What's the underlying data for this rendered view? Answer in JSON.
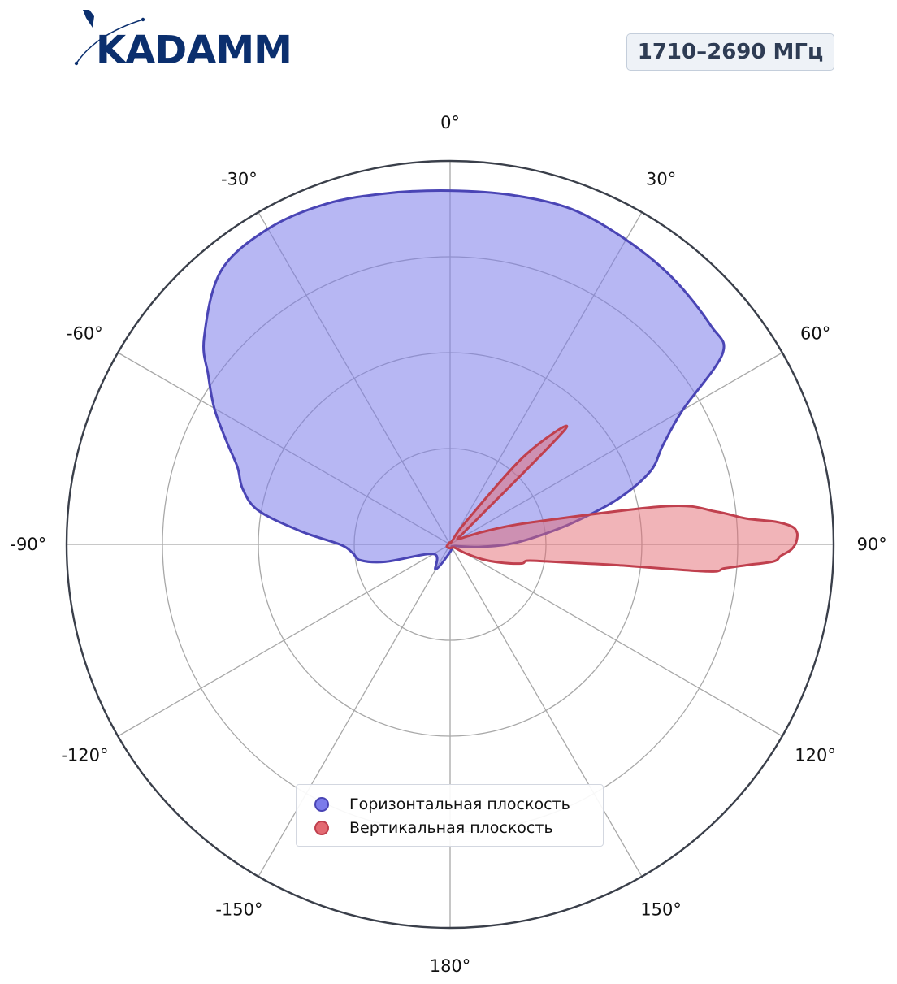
{
  "brand": {
    "logo_text": "KADAMM"
  },
  "badge": {
    "frequency_range": "1710–2690 МГц"
  },
  "chart_data": {
    "type": "polar-area",
    "angle_zero": "top",
    "angle_direction": "clockwise",
    "angle_ticks": [
      0,
      30,
      60,
      90,
      120,
      150,
      180,
      -150,
      -120,
      -90,
      -60,
      -30
    ],
    "angle_tick_labels": [
      "0°",
      "30°",
      "60°",
      "90°",
      "120°",
      "150°",
      "180°",
      "-150°",
      "-120°",
      "-90°",
      "-60°",
      "-30°"
    ],
    "radial_range": [
      0,
      4
    ],
    "radial_gridlines": [
      1,
      2,
      3,
      4
    ],
    "radial_tick_labels_shown": false,
    "grid": true,
    "legend": "bottom-center",
    "series": [
      {
        "name": "Горизонтальная плоскость",
        "color": "#7b7bea",
        "line_color": "#4a45b5",
        "theta": [
          0,
          10,
          20,
          30,
          40,
          50,
          55,
          60,
          65,
          70,
          75,
          80,
          85,
          90,
          95,
          100,
          110,
          120,
          135,
          150,
          180,
          -150,
          -120,
          -105,
          -100,
          -95,
          -90,
          -85,
          -80,
          -75,
          -70,
          -65,
          -60,
          -55,
          -50,
          -40,
          -30,
          -20,
          -10
        ],
        "r": [
          3.69,
          3.7,
          3.72,
          3.67,
          3.62,
          3.55,
          3.47,
          2.8,
          2.45,
          2.22,
          1.8,
          1.3,
          0.9,
          0.6,
          0.3,
          0.12,
          0.05,
          0.04,
          0.03,
          0.03,
          0.08,
          0.3,
          0.2,
          0.7,
          0.95,
          1.02,
          1.15,
          1.56,
          2.03,
          2.24,
          2.36,
          2.58,
          2.84,
          3.08,
          3.35,
          3.72,
          3.8,
          3.78,
          3.72
        ]
      },
      {
        "name": "Вертикальная плоскость",
        "color": "#e36a72",
        "line_color": "#c0404e",
        "theta": [
          0,
          20,
          30,
          35,
          40,
          45,
          48,
          50,
          55,
          60,
          65,
          70,
          75,
          80,
          83,
          85,
          86,
          87,
          88,
          89,
          90,
          91,
          92,
          93,
          94,
          95,
          96,
          97,
          98,
          100,
          102,
          105,
          110,
          115,
          120,
          125,
          130,
          150,
          180,
          -150,
          -120,
          -90,
          -60,
          -30
        ],
        "r": [
          0.02,
          0.02,
          0.05,
          0.3,
          1.2,
          1.7,
          0.25,
          0.12,
          0.1,
          0.12,
          0.2,
          0.42,
          0.9,
          2.3,
          2.8,
          3.1,
          3.4,
          3.57,
          3.62,
          3.62,
          3.6,
          3.55,
          3.45,
          3.38,
          3.1,
          2.87,
          2.7,
          1.8,
          1.43,
          1.02,
          0.82,
          0.77,
          0.55,
          0.36,
          0.18,
          0.07,
          0.05,
          0.04,
          0.04,
          0.04,
          0.04,
          0.02,
          0.02,
          0.02
        ]
      }
    ]
  }
}
